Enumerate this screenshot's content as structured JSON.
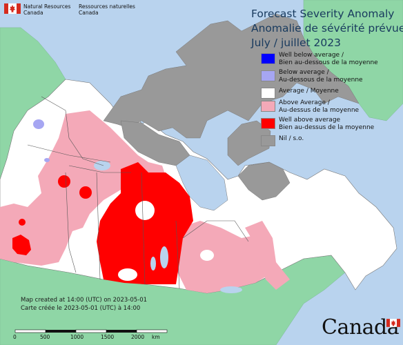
{
  "header": {
    "agency_en": "Natural Resources",
    "agency_en_2": "Canada",
    "agency_fr": "Ressources naturelles",
    "agency_fr_2": "Canada"
  },
  "map": {
    "title_en": "Forecast Severity Anomaly",
    "title_fr": "Anomalie de sévérité prévue",
    "date": "July / juillet 2023"
  },
  "legend": {
    "items": [
      {
        "line1": "Well below average /",
        "line2": "Bien au-dessous de la moyenne",
        "color": "#0000ff"
      },
      {
        "line1": "Below average /",
        "line2": "Au-dessous de la moyenne",
        "color": "#a6a6f2"
      },
      {
        "line1": "Average / Moyenne",
        "line2": "",
        "color": "#ffffff"
      },
      {
        "line1": "Above Average /",
        "line2": "Au-dessus de la moyenne",
        "color": "#f4a9b8"
      },
      {
        "line1": "Well above average",
        "line2": "Bien au-dessus de la moyenne",
        "color": "#ff0000"
      },
      {
        "line1": "Nil / s.o.",
        "line2": "",
        "color": "#999999"
      }
    ]
  },
  "footer": {
    "created_en": "Map created at 14:00 (UTC) on 2023-05-01",
    "created_fr": "Carte créée le 2023-05-01 (UTC) à 14:00",
    "wordmark": "Canada",
    "scale": {
      "ticks": [
        "0",
        "500",
        "1000",
        "1500",
        "2000"
      ],
      "unit": "km"
    }
  },
  "colors": {
    "ocean": "#b9d3ee",
    "foreign_land": "#8fd6a6",
    "nil": "#999999",
    "average": "#ffffff",
    "above": "#f4a9b8",
    "well_above": "#ff0000",
    "below": "#a6a6f2"
  },
  "icons": [
    "canada-flag-icon",
    "canada-wordmark-flag-icon"
  ]
}
